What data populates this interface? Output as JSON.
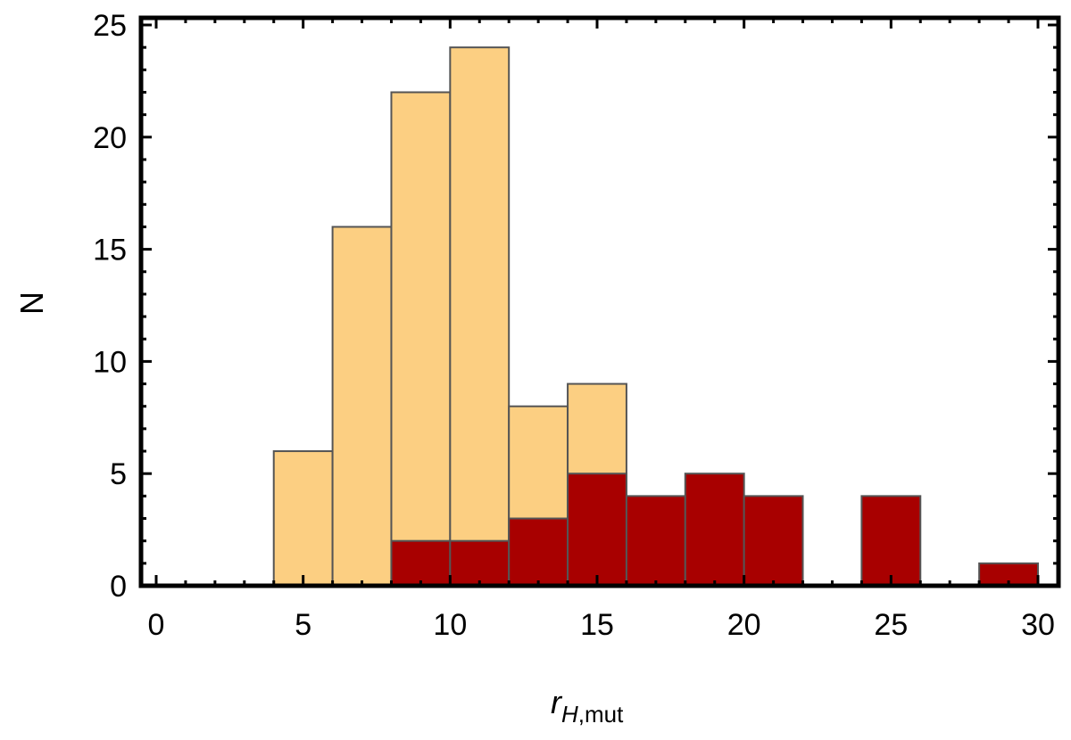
{
  "chart_data": {
    "type": "bar",
    "xlabel_main": "r",
    "xlabel_sub_italic": "H",
    "xlabel_sub_rest": ",mut",
    "ylabel": "N",
    "xlim": [
      0,
      30
    ],
    "ylim": [
      0,
      25
    ],
    "x_ticks": [
      0,
      5,
      10,
      15,
      20,
      25,
      30
    ],
    "y_ticks": [
      0,
      5,
      10,
      15,
      20,
      25
    ],
    "x_tick_labels": [
      "0",
      "5",
      "10",
      "15",
      "20",
      "25",
      "30"
    ],
    "y_tick_labels": [
      "0",
      "5",
      "10",
      "15",
      "20",
      "25"
    ],
    "grid": false,
    "bin_width": 2,
    "series": [
      {
        "color": "#fccf82",
        "bins": [
          {
            "x0": 4,
            "x1": 6,
            "count": 6
          },
          {
            "x0": 6,
            "x1": 8,
            "count": 16
          },
          {
            "x0": 8,
            "x1": 10,
            "count": 22
          },
          {
            "x0": 10,
            "x1": 12,
            "count": 24
          },
          {
            "x0": 12,
            "x1": 14,
            "count": 8
          },
          {
            "x0": 14,
            "x1": 16,
            "count": 9
          }
        ]
      },
      {
        "color": "#a80000",
        "bins": [
          {
            "x0": 8,
            "x1": 10,
            "count": 2
          },
          {
            "x0": 10,
            "x1": 12,
            "count": 2
          },
          {
            "x0": 12,
            "x1": 14,
            "count": 3
          },
          {
            "x0": 14,
            "x1": 16,
            "count": 5
          },
          {
            "x0": 16,
            "x1": 18,
            "count": 4
          },
          {
            "x0": 18,
            "x1": 20,
            "count": 5
          },
          {
            "x0": 20,
            "x1": 22,
            "count": 4
          },
          {
            "x0": 24,
            "x1": 26,
            "count": 4
          },
          {
            "x0": 28,
            "x1": 30,
            "count": 1
          }
        ]
      }
    ]
  }
}
